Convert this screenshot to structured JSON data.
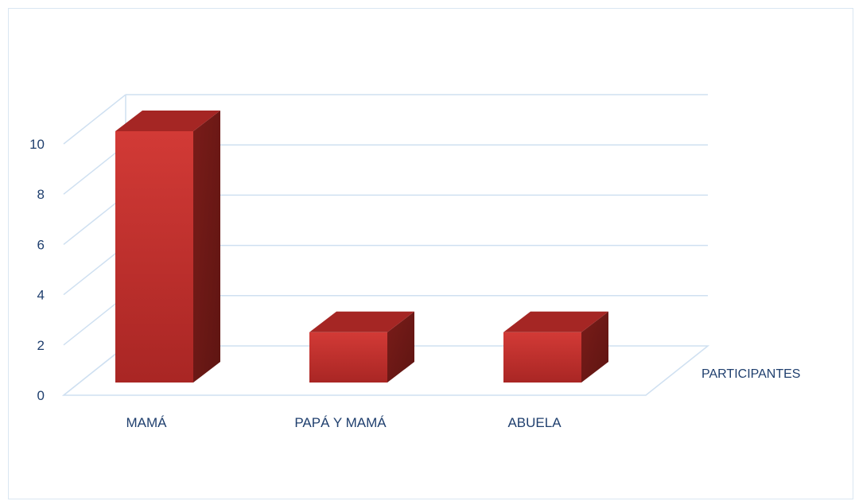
{
  "chart_data": {
    "type": "bar",
    "title": "",
    "xlabel": "",
    "ylabel": "",
    "categories": [
      "MAMÁ",
      "PAPÁ Y MAMÁ",
      "ABUELA"
    ],
    "series": [
      {
        "name": "PARTICIPANTES",
        "values": [
          10,
          2,
          2
        ]
      }
    ],
    "ylim": [
      0,
      10
    ],
    "yticks": [
      0,
      2,
      4,
      6,
      8,
      10
    ],
    "grid": true,
    "legend": "none",
    "style": "3d-column",
    "colors": {
      "bar_front": "#c62f2c",
      "bar_top": "#a52624",
      "bar_side": "#6e1916",
      "grid": "#cfe0f1",
      "text": "#1f3f6e"
    }
  }
}
